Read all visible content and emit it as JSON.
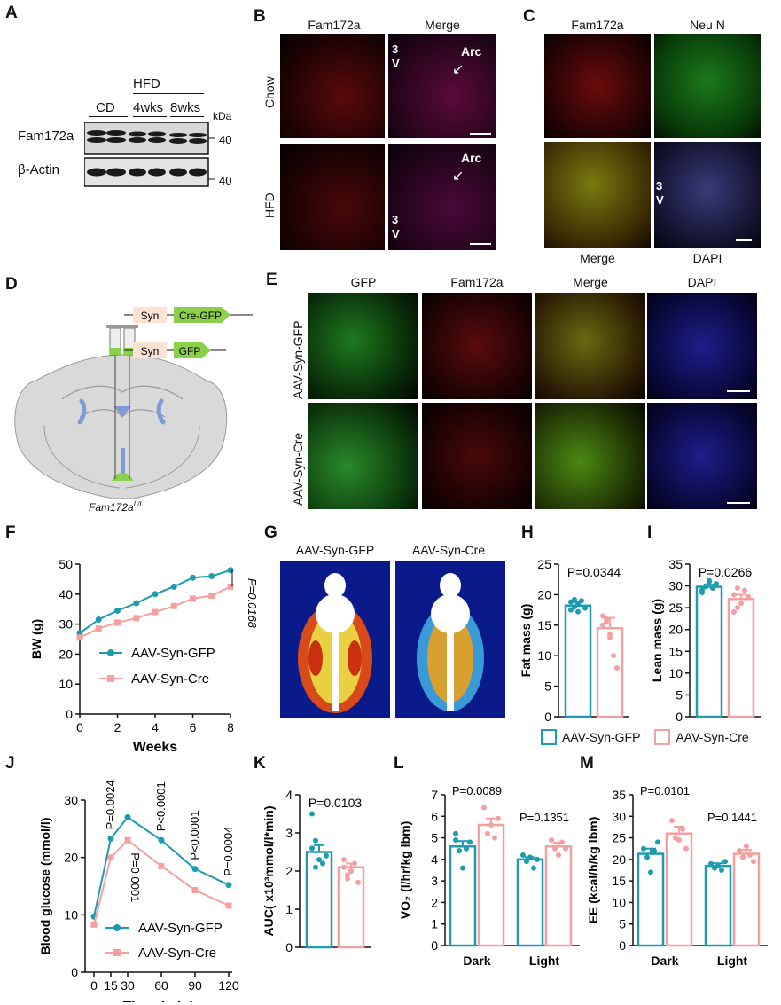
{
  "panel_labels": [
    "A",
    "B",
    "C",
    "D",
    "E",
    "F",
    "G",
    "H",
    "I",
    "J",
    "K",
    "L",
    "M"
  ],
  "colors": {
    "gfp": "#1f9bb0",
    "cre": "#f5a0a0",
    "red_signal": "#d22a2a",
    "green_signal": "#2fd02f",
    "blue_signal": "#2a2ad8"
  },
  "panelA": {
    "hfd": "HFD",
    "cd": "CD",
    "w4": "4wks",
    "w8": "8wks",
    "kda": "kDa",
    "row1": "Fam172a",
    "row2": "β-Actin",
    "m1": "40",
    "m2": "40"
  },
  "panelB": {
    "col1": "Fam172a",
    "col2": "Merge",
    "row1": "Chow",
    "row2": "HFD",
    "arc": "Arc",
    "v3": "3",
    "v3b": "V"
  },
  "panelC": {
    "fam": "Fam172a",
    "neun": "Neu N",
    "merge": "Merge",
    "dapi": "DAPI",
    "v3": "3",
    "v3b": "V"
  },
  "panelD": {
    "syn1": "Syn",
    "cregfp": "Cre-GFP",
    "syn2": "Syn",
    "gfp": "GFP",
    "mouse": "Fam172a",
    "sup": "L/L"
  },
  "panelE": {
    "c1": "GFP",
    "c2": "Fam172a",
    "c3": "Merge",
    "c4": "DAPI",
    "r1": "AAV-Syn-GFP",
    "r2": "AAV-Syn-Cre"
  },
  "panelG": {
    "left": "AAV-Syn-GFP",
    "right": "AAV-Syn-Cre"
  },
  "legend_HI": {
    "gfp": "AAV-Syn-GFP",
    "cre": "AAV-Syn-Cre"
  },
  "chart_data": [
    {
      "id": "F",
      "type": "line",
      "x": [
        0,
        1,
        2,
        3,
        4,
        5,
        6,
        7,
        8
      ],
      "series": [
        {
          "name": "AAV-Syn-GFP",
          "values": [
            27,
            31.5,
            34.5,
            37,
            40,
            42.5,
            45.5,
            46,
            48
          ]
        },
        {
          "name": "AAV-Syn-Cre",
          "values": [
            25.5,
            28.5,
            30.5,
            32,
            34,
            36,
            38.5,
            39.5,
            42.5
          ]
        }
      ],
      "xlabel": "Weeks",
      "ylabel": "BW (g)",
      "ylim": [
        0,
        50
      ],
      "yticks": [
        0,
        10,
        20,
        30,
        40,
        50
      ],
      "xticks": [
        0,
        2,
        4,
        6,
        8
      ],
      "annotation": "P=0.0168"
    },
    {
      "id": "H",
      "type": "bar",
      "categories": [
        "AAV-Syn-GFP",
        "AAV-Syn-Cre"
      ],
      "values": [
        18.2,
        14.5
      ],
      "sem": [
        0.6,
        1.7
      ],
      "points": [
        [
          17.5,
          18,
          18.5,
          19,
          17.8,
          18.8,
          19.2,
          17.2
        ],
        [
          16.5,
          15.5,
          13,
          10,
          8,
          15,
          16,
          13.5
        ]
      ],
      "ylabel": "Fat mass (g)",
      "ylim": [
        0,
        25
      ],
      "yticks": [
        0,
        5,
        10,
        15,
        20,
        25
      ],
      "annotation": "P=0.0344"
    },
    {
      "id": "I",
      "type": "bar",
      "categories": [
        "AAV-Syn-GFP",
        "AAV-Syn-Cre"
      ],
      "values": [
        29.8,
        27
      ],
      "sem": [
        0.5,
        1.0
      ],
      "points": [
        [
          29,
          30,
          31,
          29.5,
          30.5,
          28.5,
          29.8,
          31.2
        ],
        [
          28,
          25,
          26,
          29,
          27.5,
          24,
          29.5
        ]
      ],
      "ylabel": "Lean mass (g)",
      "ylim": [
        0,
        35
      ],
      "yticks": [
        0,
        5,
        10,
        15,
        20,
        25,
        30,
        35
      ],
      "annotation": "P=0.0266"
    },
    {
      "id": "J",
      "type": "line",
      "x": [
        0,
        15,
        30,
        60,
        90,
        120
      ],
      "series": [
        {
          "name": "AAV-Syn-GFP",
          "values": [
            9.7,
            23.3,
            27,
            23,
            18,
            15.2
          ]
        },
        {
          "name": "AAV-Syn-Cre",
          "values": [
            8.3,
            20,
            23,
            18.5,
            14.3,
            11.6
          ]
        }
      ],
      "xlabel": "Time (min)",
      "ylabel": "Blood glucose (mmol/l)",
      "ylim": [
        0,
        30
      ],
      "yticks": [
        0,
        10,
        20,
        30
      ],
      "xticks": [
        0,
        15,
        30,
        60,
        90,
        120
      ],
      "annotations_top": [
        "P=0.0024",
        "P<0.0001",
        "P<0.0001",
        "P=0.0004"
      ],
      "annotation_bottom": "P=0.0001"
    },
    {
      "id": "K",
      "type": "bar",
      "categories": [
        "AAV-Syn-GFP",
        "AAV-Syn-Cre"
      ],
      "values": [
        2.5,
        2.1
      ],
      "sem": [
        0.18,
        0.1
      ],
      "points": [
        [
          3.5,
          2.8,
          2.3,
          2.2,
          2.4,
          2.6,
          2.1
        ],
        [
          2.3,
          1.9,
          2.0,
          2.2,
          1.7,
          2.1,
          1.8,
          2.0
        ]
      ],
      "ylabel": "AUC( x10³mmol/l*min)",
      "ylim": [
        0,
        4
      ],
      "annotation": "P=0.0103"
    },
    {
      "id": "L",
      "type": "bar",
      "categories": [
        "Dark",
        "Light"
      ],
      "series": [
        {
          "name": "AAV-Syn-GFP",
          "values": [
            4.6,
            4.0
          ],
          "sem": [
            0.25,
            0.1
          ]
        },
        {
          "name": "AAV-Syn-Cre",
          "values": [
            5.6,
            4.6
          ],
          "sem": [
            0.3,
            0.18
          ]
        }
      ],
      "points": [
        [
          [
            4.9,
            4.4,
            3.6,
            4.5,
            4.8,
            5.2
          ],
          [
            4.2,
            3.9,
            4.1,
            3.6,
            4.0
          ]
        ],
        [
          [
            6.4,
            5.2,
            5.6,
            5.0,
            5.9
          ],
          [
            4.9,
            4.5,
            4.2,
            4.8,
            4.5
          ]
        ]
      ],
      "xlabel": "",
      "ylabel": "VO₂ (l/hr/kg lbm)",
      "ylim": [
        0,
        7
      ],
      "yticks": [
        0,
        1,
        2,
        3,
        4,
        5,
        6,
        7
      ],
      "annotations": [
        "P=0.0089",
        "P=0.1351"
      ]
    },
    {
      "id": "M",
      "type": "bar",
      "categories": [
        "Dark",
        "Light"
      ],
      "series": [
        {
          "name": "AAV-Syn-GFP",
          "values": [
            21.3,
            18.5
          ],
          "sem": [
            1.2,
            0.6
          ]
        },
        {
          "name": "AAV-Syn-Cre",
          "values": [
            26.0,
            21.3
          ],
          "sem": [
            1.6,
            0.9
          ]
        }
      ],
      "points": [
        [
          [
            22.5,
            20.5,
            17,
            22,
            24
          ],
          [
            19,
            18,
            18.5,
            17.5,
            19.5
          ]
        ],
        [
          [
            29,
            25,
            24.5,
            27,
            22.5
          ],
          [
            22,
            20.5,
            23,
            21,
            19.5
          ]
        ]
      ],
      "xlabel": "",
      "ylabel": "EE (kcal/h/kg lbm)",
      "ylim": [
        0,
        35
      ],
      "yticks": [
        0,
        5,
        10,
        15,
        20,
        25,
        30,
        35
      ],
      "annotations": [
        "P=0.0101",
        "P=0.1441"
      ]
    }
  ]
}
